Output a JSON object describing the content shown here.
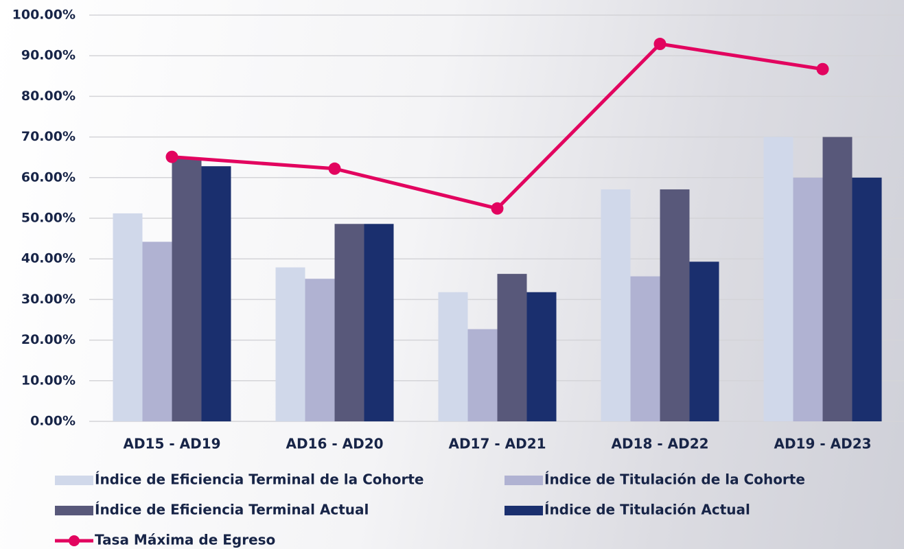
{
  "chart_data": {
    "type": "bar",
    "categories": [
      "AD15 - AD19",
      "AD16 - AD20",
      "AD17 - AD21",
      "AD18 - AD22",
      "AD19 - AD23"
    ],
    "series": [
      {
        "name": "Índice de Eficiencia Terminal de la Cohorte",
        "color": "#d0d8ea",
        "values": [
          51.2,
          37.9,
          31.8,
          57.1,
          70.0
        ]
      },
      {
        "name": "Índice de Titulación de la Cohorte",
        "color": "#b0b2d2",
        "values": [
          44.2,
          35.1,
          22.7,
          35.7,
          60.0
        ]
      },
      {
        "name": "Índice de Eficiencia Terminal Actual",
        "color": "#58587a",
        "values": [
          64.9,
          48.6,
          36.3,
          57.1,
          70.0
        ]
      },
      {
        "name": "Índice de Titulación Actual",
        "color": "#1a2f6e",
        "values": [
          62.8,
          48.6,
          31.8,
          39.3,
          60.0
        ]
      },
      {
        "name": "Tasa Máxima de Egreso",
        "color": "#e2045f",
        "type": "line",
        "values": [
          65.1,
          62.2,
          52.4,
          92.9,
          86.7
        ]
      }
    ],
    "ylim": [
      0,
      100
    ],
    "yticks": [
      {
        "value": 0,
        "label": "0.00%"
      },
      {
        "value": 10,
        "label": "10.00%"
      },
      {
        "value": 20,
        "label": "20.00%"
      },
      {
        "value": 30,
        "label": "30.00%"
      },
      {
        "value": 40,
        "label": "40.00%"
      },
      {
        "value": 50,
        "label": "50.00%"
      },
      {
        "value": 60,
        "label": "60.00%"
      },
      {
        "value": 70,
        "label": "70.00%"
      },
      {
        "value": 80,
        "label": "80.00%"
      },
      {
        "value": 90,
        "label": "90.00%"
      },
      {
        "value": 100,
        "label": "100.00%"
      }
    ],
    "grid": true,
    "legend": "bottom"
  }
}
